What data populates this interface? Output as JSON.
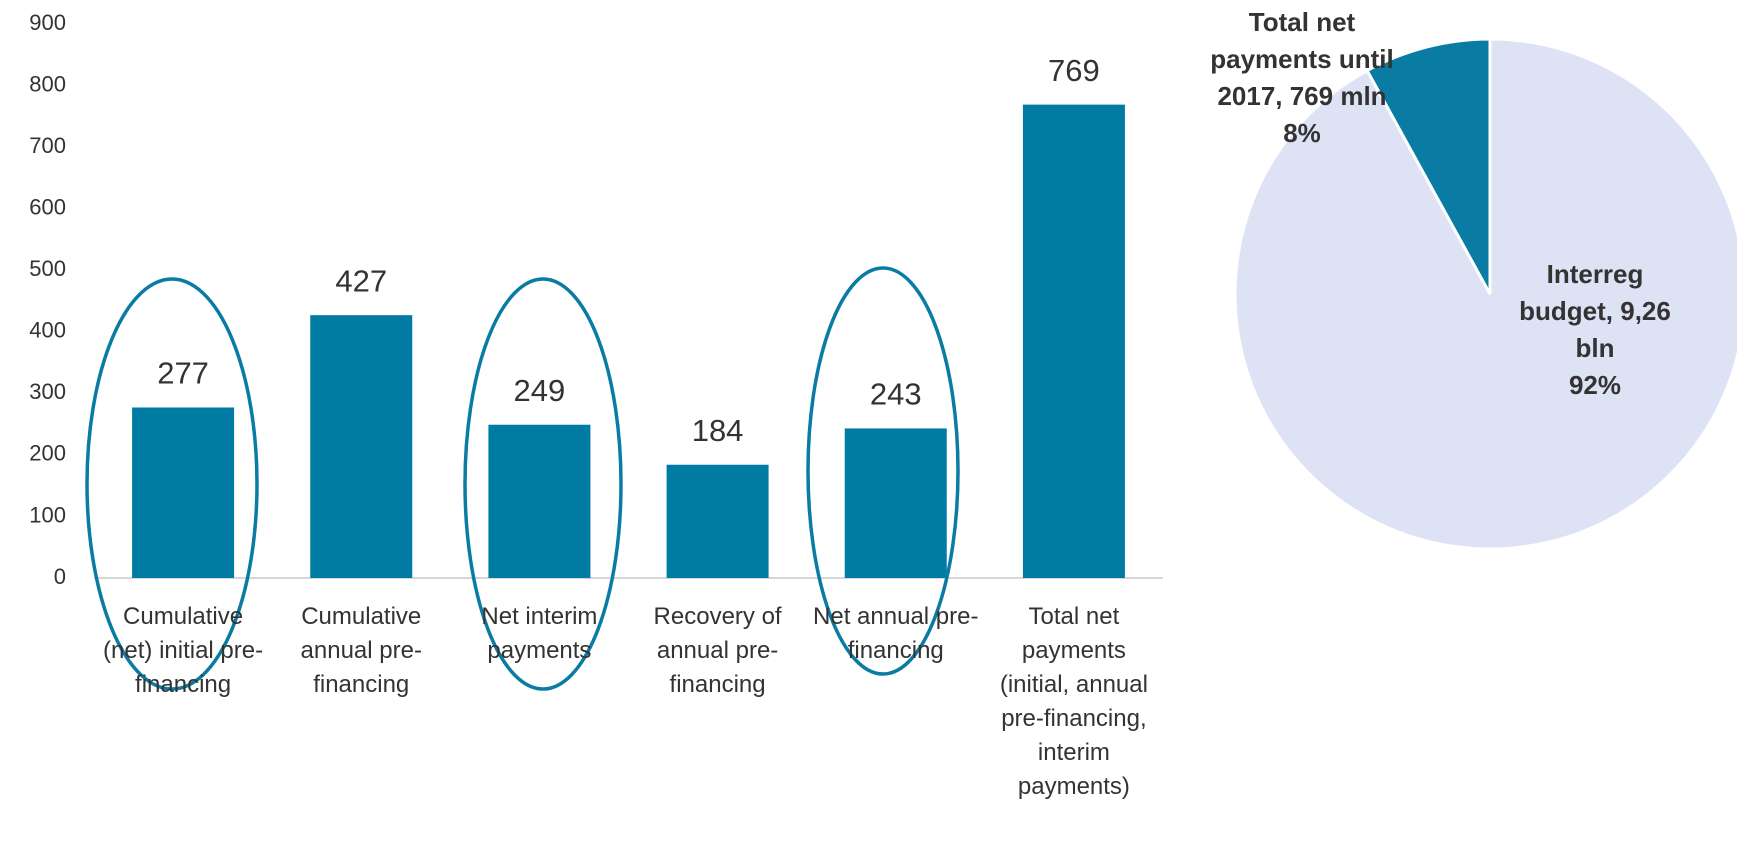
{
  "chart_data": [
    {
      "type": "bar",
      "categories": [
        "Cumulative (net) initial pre-financing",
        "Cumulative annual pre-financing",
        "Net interim payments",
        "Recovery of annual pre-financing",
        "Net annual pre-financing",
        "Total net payments (initial, annual pre-financing, interim payments)"
      ],
      "values": [
        277,
        427,
        249,
        184,
        243,
        769
      ],
      "color": "#007ba4",
      "ylim": [
        0,
        900
      ],
      "yticks": [
        0,
        100,
        200,
        300,
        400,
        500,
        600,
        700,
        800,
        900
      ],
      "grid": false
    },
    {
      "type": "pie",
      "categories": [
        "Interreg budget, 9,26 bln",
        "Total net payments until 2017, 769 mln"
      ],
      "values": [
        92,
        8
      ],
      "value_labels": [
        "92%",
        "8%"
      ],
      "colors": [
        "#dde3f4",
        "#0a7ca4"
      ]
    }
  ]
}
